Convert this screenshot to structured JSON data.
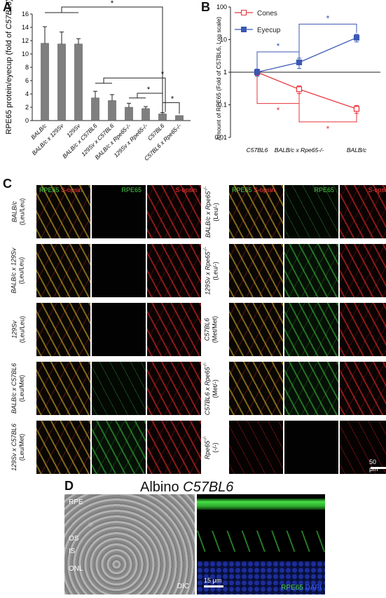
{
  "panels": {
    "a": "A",
    "b": "B",
    "c": "C",
    "d": "D"
  },
  "chart_data": [
    {
      "type": "bar",
      "ylabel_pre": "RPE65 protein/eyecup (fold of ",
      "ylabel_strain": "C57BL6",
      "ylabel_post": ")",
      "ylim": [
        0,
        16
      ],
      "yticks": [
        "0",
        "2",
        "4",
        "6",
        "8",
        "10",
        "12",
        "14",
        "16"
      ],
      "categories": [
        "BALB/c",
        "BALB/c x 129Sv",
        "129Sv",
        "BALB/c x C57BL6",
        "129Sv x C57BL6",
        "BALB/c x Rpe65-/-",
        "129Sv x Rpe65-/-",
        "C57BL6",
        "C57BL6 x Rpe65-/-"
      ],
      "values": [
        11.6,
        11.5,
        11.5,
        3.4,
        3.0,
        2.0,
        1.8,
        1.0,
        0.75
      ],
      "errors": [
        2.5,
        1.8,
        0.8,
        1.0,
        0.9,
        0.6,
        0.3,
        0.2,
        0.0
      ],
      "significance": [
        "*",
        "*",
        "*",
        "*"
      ],
      "color": "#7f7f7f"
    },
    {
      "type": "line",
      "ylabel": "Amount of RPE65 (Fold of C57BL6, Log scale)",
      "yscale": "log",
      "ylim": [
        0.01,
        100
      ],
      "yticks": [
        "0.01",
        "0.1",
        "1",
        "10",
        "100"
      ],
      "categories": [
        "C57BL6",
        "BALB/c x Rpe65-/-",
        "BALB/c"
      ],
      "series": [
        {
          "name": "Cones",
          "values": [
            1.0,
            0.3,
            0.075
          ],
          "errors_up": [
            0.2,
            0.08,
            0.02
          ],
          "errors_down": [
            0.2,
            0.08,
            0.02
          ],
          "color": "#e8333a",
          "marker": "open-square"
        },
        {
          "name": "Eyecup",
          "values": [
            1.0,
            2.0,
            11.5
          ],
          "errors_up": [
            0.25,
            0.7,
            3.0
          ],
          "errors_down": [
            0.25,
            0.7,
            3.0
          ],
          "color": "#3a58b5",
          "marker": "filled-square"
        }
      ],
      "significance": [
        "*",
        "*",
        "*",
        "*"
      ],
      "legend": "top-left"
    }
  ],
  "panel_c": {
    "headers": {
      "rpe65": "RPE65",
      "sopsin": "S-opsin"
    },
    "left_rows": [
      {
        "strain": "BALB/c",
        "genotype": "(Leu/Leu)",
        "tiles": [
          "merge",
          "dark",
          "red"
        ]
      },
      {
        "strain": "BALB/c x 129Sv",
        "genotype": "(Leu/Leu)",
        "tiles": [
          "merge",
          "dark",
          "red"
        ]
      },
      {
        "strain": "129Sv",
        "genotype": "(Leu/Leu)",
        "tiles": [
          "merge",
          "dark",
          "red"
        ]
      },
      {
        "strain": "BALB/c x C57BL6",
        "genotype": "(Leu/Met)",
        "tiles": [
          "merge",
          "dim-green",
          "red"
        ]
      },
      {
        "strain": "129Sv x C57BL6",
        "genotype": "(Leu/Met)",
        "tiles": [
          "merge",
          "green",
          "red"
        ]
      }
    ],
    "right_rows": [
      {
        "strain": "BALB/c x Rpe65",
        "sup": "-/-",
        "genotype": "(Leu/-)",
        "tiles": [
          "merge",
          "dim-green",
          "red"
        ]
      },
      {
        "strain": "129Sv x Rpe65",
        "sup": "-/-",
        "genotype": "(Leu/-)",
        "tiles": [
          "merge",
          "green",
          "red"
        ]
      },
      {
        "strain": "C57BL6",
        "sup": "",
        "genotype": "(Met/Met)",
        "tiles": [
          "merge",
          "green",
          "red"
        ]
      },
      {
        "strain": "C57BL6 x Rpe65",
        "sup": "-/-",
        "genotype": "(Met/-)",
        "tiles": [
          "merge",
          "green",
          "red"
        ]
      },
      {
        "strain": "Rpe65",
        "sup": "-/-",
        "genotype": "(-/-)",
        "tiles": [
          "dim-red",
          "dark",
          "dim-red"
        ]
      }
    ],
    "scale_label": "50 μm"
  },
  "panel_d": {
    "title_pre": "Albino ",
    "title_strain": "C57BL6",
    "layers": [
      "RPE",
      "OS",
      "IS",
      "ONL"
    ],
    "dic_label": "DIC",
    "scale_label": "15 μm",
    "stain_green": "RPE65",
    "stain_blue": "DAPI"
  }
}
